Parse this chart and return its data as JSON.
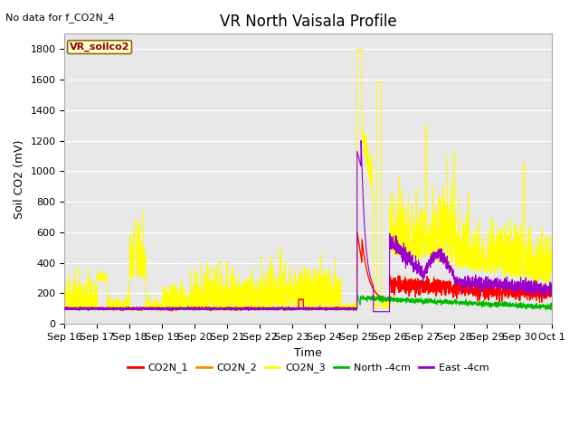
{
  "title": "VR North Vaisala Profile",
  "annotation": "No data for f_CO2N_4",
  "ylabel": "Soil CO2 (mV)",
  "xlabel": "Time",
  "legend_label": "VR_soilco2",
  "ylim": [
    0,
    1900
  ],
  "yticks": [
    0,
    200,
    400,
    600,
    800,
    1000,
    1200,
    1400,
    1600,
    1800
  ],
  "xtick_labels": [
    "Sep 16",
    "Sep 17",
    "Sep 18",
    "Sep 19",
    "Sep 20",
    "Sep 21",
    "Sep 22",
    "Sep 23",
    "Sep 24",
    "Sep 25",
    "Sep 26",
    "Sep 27",
    "Sep 28",
    "Sep 29",
    "Sep 30",
    "Oct 1"
  ],
  "series_colors": {
    "CO2N_1": "#ff0000",
    "CO2N_2": "#ff8800",
    "CO2N_3": "#ffff00",
    "North_4cm": "#00bb00",
    "East_4cm": "#9900cc"
  },
  "legend_entries": [
    "CO2N_1",
    "CO2N_2",
    "CO2N_3",
    "North -4cm",
    "East -4cm"
  ],
  "legend_colors": [
    "#ff0000",
    "#ff8800",
    "#ffff00",
    "#00bb00",
    "#9900cc"
  ],
  "background_color": "#ffffff",
  "plot_bg_color": "#e8e8e8",
  "grid_color": "#ffffff",
  "title_fontsize": 12,
  "label_fontsize": 9,
  "tick_fontsize": 8
}
